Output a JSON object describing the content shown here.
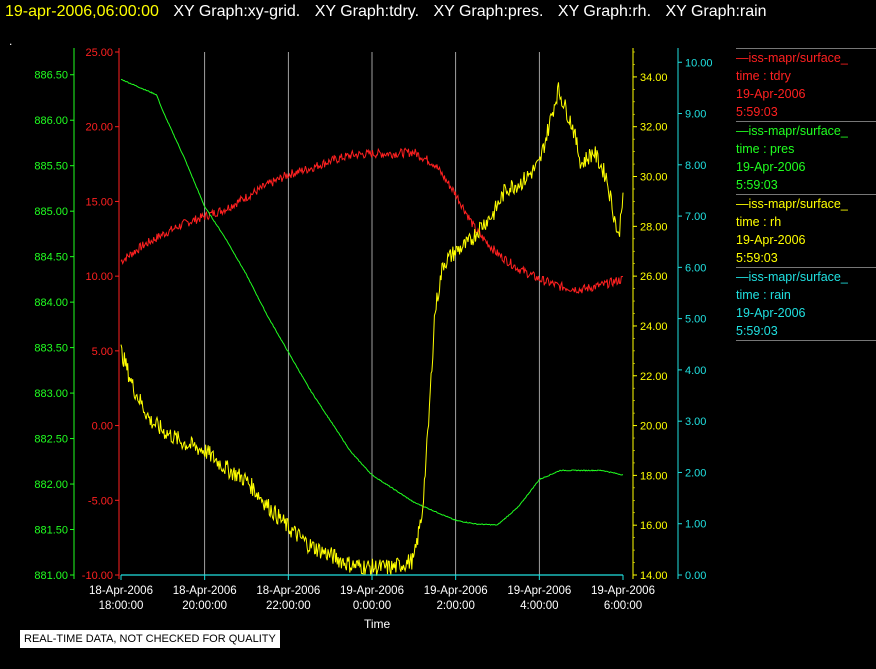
{
  "header": {
    "datetime": "19-apr-2006,06:00:00",
    "graphs": [
      "XY Graph:xy-grid.",
      "XY Graph:tdry.",
      "XY Graph:pres.",
      "XY Graph:rh.",
      "XY Graph:rain"
    ],
    "dot": "."
  },
  "footer": {
    "quality_note": "REAL-TIME DATA, NOT CHECKED FOR QUALITY",
    "xlabel": "Time"
  },
  "legend": [
    {
      "name": "—iss-mapr/surface_",
      "var": "time : tdry",
      "date": "19-Apr-2006",
      "time": "5:59:03",
      "color": "#ff2020"
    },
    {
      "name": "—iss-mapr/surface_",
      "var": "time : pres",
      "date": "19-Apr-2006",
      "time": "5:59:03",
      "color": "#20ff20"
    },
    {
      "name": "—iss-mapr/surface_",
      "var": "time : rh",
      "date": "19-Apr-2006",
      "time": "5:59:03",
      "color": "#ffff00"
    },
    {
      "name": "—iss-mapr/surface_",
      "var": "time : rain",
      "date": "19-Apr-2006",
      "time": "5:59:03",
      "color": "#20e0e0"
    }
  ],
  "chart_data": {
    "type": "line",
    "xlabel": "Time",
    "x_ticks": [
      [
        "18-Apr-2006",
        "18:00:00"
      ],
      [
        "18-Apr-2006",
        "20:00:00"
      ],
      [
        "18-Apr-2006",
        "22:00:00"
      ],
      [
        "19-Apr-2006",
        "0:00:00"
      ],
      [
        "19-Apr-2006",
        "2:00:00"
      ],
      [
        "19-Apr-2006",
        "4:00:00"
      ],
      [
        "19-Apr-2006",
        "6:00:00"
      ]
    ],
    "x_range_hours": [
      0,
      12
    ],
    "grid": "vertical",
    "legend_position": "right",
    "axes": {
      "pres": {
        "color": "#20ff20",
        "range": [
          881.0,
          886.75
        ],
        "ticks": [
          "881.00",
          "881.50",
          "882.00",
          "882.50",
          "883.00",
          "883.50",
          "884.00",
          "884.50",
          "885.00",
          "885.50",
          "886.00",
          "886.50"
        ]
      },
      "tdry": {
        "color": "#ff2020",
        "range": [
          -10,
          25
        ],
        "ticks": [
          "-10.00",
          "-5.00",
          "0.00",
          "5.00",
          "10.00",
          "15.00",
          "20.00",
          "25.00"
        ]
      },
      "rh": {
        "color": "#ffff00",
        "range": [
          14,
          35
        ],
        "ticks": [
          "14.00",
          "16.00",
          "18.00",
          "20.00",
          "22.00",
          "24.00",
          "26.00",
          "28.00",
          "30.00",
          "32.00",
          "34.00"
        ]
      },
      "rain": {
        "color": "#20e0e0",
        "range": [
          0,
          10.2
        ],
        "ticks": [
          "0.00",
          "1.00",
          "2.00",
          "3.00",
          "4.00",
          "5.00",
          "6.00",
          "7.00",
          "8.00",
          "9.00",
          "10.00"
        ]
      }
    },
    "series": [
      {
        "name": "tdry",
        "axis": "tdry",
        "color": "#ff2020",
        "noise": 0.3,
        "x": [
          0,
          0.5,
          1,
          1.5,
          2,
          2.5,
          3,
          3.5,
          4,
          4.5,
          5,
          5.5,
          6,
          6.5,
          7,
          7.5,
          8,
          8.5,
          9,
          9.5,
          10,
          10.5,
          11,
          11.5,
          12
        ],
        "y": [
          11.0,
          12.0,
          12.8,
          13.5,
          14.0,
          14.5,
          15.3,
          16.1,
          16.8,
          17.2,
          17.7,
          18.1,
          18.2,
          18.2,
          18.3,
          17.5,
          15.5,
          13.0,
          11.5,
          10.5,
          9.8,
          9.3,
          9.1,
          9.4,
          9.8
        ]
      },
      {
        "name": "pres",
        "axis": "pres",
        "color": "#20ff20",
        "noise": 0.005,
        "x": [
          0,
          0.5,
          0.85,
          1,
          1.5,
          2,
          2.5,
          3,
          3.5,
          4,
          4.5,
          5,
          5.5,
          6,
          6.5,
          7,
          7.5,
          8,
          8.5,
          9,
          9.5,
          10,
          10.5,
          11,
          11.5,
          12
        ],
        "y": [
          886.45,
          886.35,
          886.28,
          886.1,
          885.6,
          885.05,
          884.7,
          884.3,
          883.85,
          883.45,
          883.05,
          882.7,
          882.35,
          882.1,
          881.95,
          881.8,
          881.7,
          881.6,
          881.56,
          881.55,
          881.75,
          882.05,
          882.15,
          882.15,
          882.15,
          882.1
        ]
      },
      {
        "name": "rh",
        "axis": "rh",
        "color": "#ffff00",
        "noise": 0.35,
        "x": [
          0,
          0.3,
          0.7,
          1,
          1.5,
          2,
          2.5,
          3,
          3.5,
          4,
          4.5,
          5,
          5.5,
          6,
          6.5,
          7,
          7.2,
          7.35,
          7.5,
          7.7,
          8.0,
          8.3,
          8.6,
          8.9,
          9.2,
          9.6,
          10.0,
          10.3,
          10.45,
          10.8,
          11.0,
          11.3,
          11.6,
          11.9,
          12
        ],
        "y": [
          23.0,
          21.5,
          20.2,
          19.8,
          19.3,
          19.0,
          18.3,
          17.8,
          16.8,
          15.9,
          15.2,
          14.8,
          14.4,
          14.3,
          14.3,
          14.6,
          16.5,
          20.0,
          24.5,
          26.5,
          27.0,
          27.3,
          28.0,
          28.5,
          29.5,
          29.8,
          30.5,
          32.5,
          33.5,
          32.0,
          30.5,
          31.0,
          30.0,
          27.5,
          29.5
        ]
      },
      {
        "name": "rain",
        "axis": "rain",
        "color": "#20e0e0",
        "noise": 0,
        "x": [
          0,
          12
        ],
        "y": [
          0.0,
          0.0
        ]
      }
    ]
  }
}
